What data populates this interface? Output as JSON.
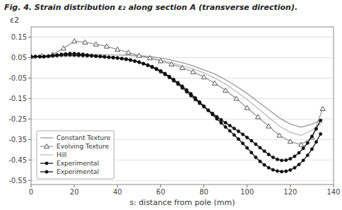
{
  "chart_data": {
    "type": "line",
    "title": "Fig. 4. Strain distribution ε₂ along section A (transverse direction).",
    "x_label": "s: distance from pole (mm)",
    "y_label": "ε2",
    "xlim": [
      0,
      140
    ],
    "ylim": [
      -0.57,
      0.2
    ],
    "xticks": [
      0,
      20,
      40,
      60,
      80,
      100,
      120,
      140
    ],
    "yticks": [
      0.15,
      0.05,
      -0.05,
      -0.15,
      -0.25,
      -0.35,
      -0.45,
      -0.55
    ],
    "grid": true,
    "legend": "lower left",
    "series": [
      {
        "name": "Constant Texture",
        "color": "#999999",
        "marker": "none",
        "x": [
          0,
          5,
          10,
          15,
          20,
          25,
          30,
          35,
          40,
          45,
          50,
          55,
          60,
          65,
          70,
          75,
          80,
          85,
          90,
          95,
          100,
          105,
          110,
          115,
          120,
          125,
          130,
          135
        ],
        "values": [
          0.055,
          0.055,
          0.056,
          0.057,
          0.058,
          0.06,
          0.062,
          0.063,
          0.063,
          0.062,
          0.06,
          0.055,
          0.048,
          0.038,
          0.025,
          0.01,
          -0.01,
          -0.03,
          -0.058,
          -0.09,
          -0.125,
          -0.165,
          -0.205,
          -0.245,
          -0.275,
          -0.29,
          -0.275,
          -0.25
        ]
      },
      {
        "name": "Evolving Texture",
        "color": "#999999",
        "marker": "triangle",
        "x": [
          0,
          5,
          10,
          15,
          20,
          25,
          30,
          35,
          40,
          45,
          50,
          55,
          60,
          65,
          70,
          75,
          80,
          85,
          90,
          95,
          100,
          105,
          110,
          115,
          120,
          125,
          130,
          135
        ],
        "values": [
          0.055,
          0.058,
          0.065,
          0.095,
          0.13,
          0.125,
          0.115,
          0.105,
          0.09,
          0.075,
          0.06,
          0.048,
          0.033,
          0.018,
          0.0,
          -0.02,
          -0.045,
          -0.075,
          -0.11,
          -0.15,
          -0.195,
          -0.24,
          -0.285,
          -0.33,
          -0.36,
          -0.375,
          -0.34,
          -0.2
        ]
      },
      {
        "name": "Hill",
        "color": "#bbbbbb",
        "marker": "none",
        "x": [
          0,
          5,
          10,
          15,
          20,
          25,
          30,
          35,
          40,
          45,
          50,
          55,
          60,
          65,
          70,
          75,
          80,
          85,
          90,
          95,
          100,
          105,
          110,
          115,
          120,
          125,
          130,
          135
        ],
        "values": [
          0.055,
          0.056,
          0.058,
          0.06,
          0.063,
          0.065,
          0.066,
          0.065,
          0.063,
          0.06,
          0.055,
          0.048,
          0.038,
          0.025,
          0.01,
          -0.005,
          -0.025,
          -0.05,
          -0.08,
          -0.115,
          -0.155,
          -0.198,
          -0.242,
          -0.285,
          -0.315,
          -0.33,
          -0.305,
          -0.265
        ]
      },
      {
        "name": "Experimental",
        "color": "#111111",
        "marker": "circle",
        "x": [
          0,
          2,
          4,
          6,
          8,
          10,
          12,
          14,
          16,
          18,
          20,
          22,
          24,
          26,
          28,
          30,
          32,
          34,
          36,
          38,
          40,
          42,
          44,
          46,
          48,
          50,
          52,
          54,
          56,
          58,
          60,
          62,
          64,
          66,
          68,
          70,
          72,
          74,
          76,
          78,
          80,
          82,
          84,
          86,
          88,
          90,
          92,
          94,
          96,
          98,
          100,
          102,
          104,
          106,
          108,
          110,
          112,
          114,
          116,
          118,
          120,
          122,
          124,
          126,
          128,
          130,
          132,
          134
        ],
        "values": [
          0.055,
          0.055,
          0.055,
          0.055,
          0.057,
          0.06,
          0.063,
          0.066,
          0.068,
          0.07,
          0.07,
          0.068,
          0.066,
          0.063,
          0.06,
          0.057,
          0.055,
          0.053,
          0.051,
          0.05,
          0.048,
          0.045,
          0.042,
          0.038,
          0.033,
          0.027,
          0.02,
          0.012,
          0.003,
          -0.007,
          -0.019,
          -0.032,
          -0.047,
          -0.063,
          -0.08,
          -0.098,
          -0.117,
          -0.136,
          -0.155,
          -0.173,
          -0.19,
          -0.207,
          -0.223,
          -0.239,
          -0.254,
          -0.268,
          -0.282,
          -0.296,
          -0.31,
          -0.325,
          -0.34,
          -0.356,
          -0.373,
          -0.39,
          -0.407,
          -0.423,
          -0.437,
          -0.447,
          -0.452,
          -0.451,
          -0.444,
          -0.432,
          -0.415,
          -0.393,
          -0.367,
          -0.335,
          -0.298,
          -0.257
        ]
      },
      {
        "name": "Experimental",
        "color": "#111111",
        "marker": "circle",
        "x": [
          0,
          2,
          4,
          6,
          8,
          10,
          12,
          14,
          16,
          18,
          20,
          22,
          24,
          26,
          28,
          30,
          32,
          34,
          36,
          38,
          40,
          42,
          44,
          46,
          48,
          50,
          52,
          54,
          56,
          58,
          60,
          62,
          64,
          66,
          68,
          70,
          72,
          74,
          76,
          78,
          80,
          82,
          84,
          86,
          88,
          90,
          92,
          94,
          96,
          98,
          100,
          102,
          104,
          106,
          108,
          110,
          112,
          114,
          116,
          118,
          120,
          122,
          124,
          126,
          128,
          130,
          132,
          134
        ],
        "values": [
          0.055,
          0.055,
          0.055,
          0.055,
          0.056,
          0.058,
          0.06,
          0.062,
          0.063,
          0.063,
          0.062,
          0.061,
          0.06,
          0.059,
          0.058,
          0.057,
          0.056,
          0.054,
          0.052,
          0.05,
          0.048,
          0.045,
          0.042,
          0.038,
          0.033,
          0.028,
          0.021,
          0.014,
          0.006,
          -0.004,
          -0.015,
          -0.028,
          -0.042,
          -0.057,
          -0.073,
          -0.09,
          -0.108,
          -0.127,
          -0.147,
          -0.167,
          -0.187,
          -0.208,
          -0.228,
          -0.249,
          -0.269,
          -0.289,
          -0.308,
          -0.328,
          -0.348,
          -0.369,
          -0.391,
          -0.414,
          -0.437,
          -0.457,
          -0.474,
          -0.488,
          -0.498,
          -0.504,
          -0.507,
          -0.505,
          -0.499,
          -0.488,
          -0.472,
          -0.452,
          -0.427,
          -0.397,
          -0.362,
          -0.323
        ]
      }
    ]
  }
}
